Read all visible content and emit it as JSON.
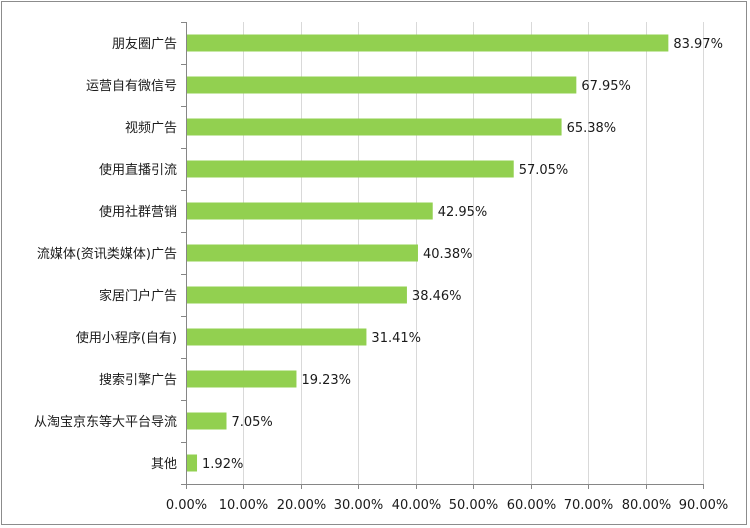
{
  "chart_data": {
    "type": "bar",
    "orientation": "horizontal",
    "title": "",
    "xlabel": "",
    "ylabel": "",
    "categories": [
      "朋友圈广告",
      "运营自有微信号",
      "视频广告",
      "使用直播引流",
      "使用社群营销",
      "流媒体(资讯类媒体)广告",
      "家居门户广告",
      "使用小程序(自有)",
      "搜索引擎广告",
      "从淘宝京东等大平台导流",
      "其他"
    ],
    "values": [
      83.97,
      67.95,
      65.38,
      57.05,
      42.95,
      40.38,
      38.46,
      31.41,
      19.23,
      7.05,
      1.92
    ],
    "value_labels": [
      "83.97%",
      "67.95%",
      "65.38%",
      "57.05%",
      "42.95%",
      "40.38%",
      "38.46%",
      "31.41%",
      "19.23%",
      "7.05%",
      "1.92%"
    ],
    "xlim": [
      0,
      90
    ],
    "x_ticks": [
      0,
      10,
      20,
      30,
      40,
      50,
      60,
      70,
      80,
      90
    ],
    "x_tick_labels": [
      "0.00%",
      "10.00%",
      "20.00%",
      "30.00%",
      "40.00%",
      "50.00%",
      "60.00%",
      "70.00%",
      "80.00%",
      "90.00%"
    ],
    "grid": "vertical",
    "legend": "none",
    "colors": {
      "bar": "#92d050",
      "grid": "#d9d9d9",
      "axis": "#868686",
      "text": "#1a1a1a",
      "border": "#8c8c8c"
    }
  }
}
